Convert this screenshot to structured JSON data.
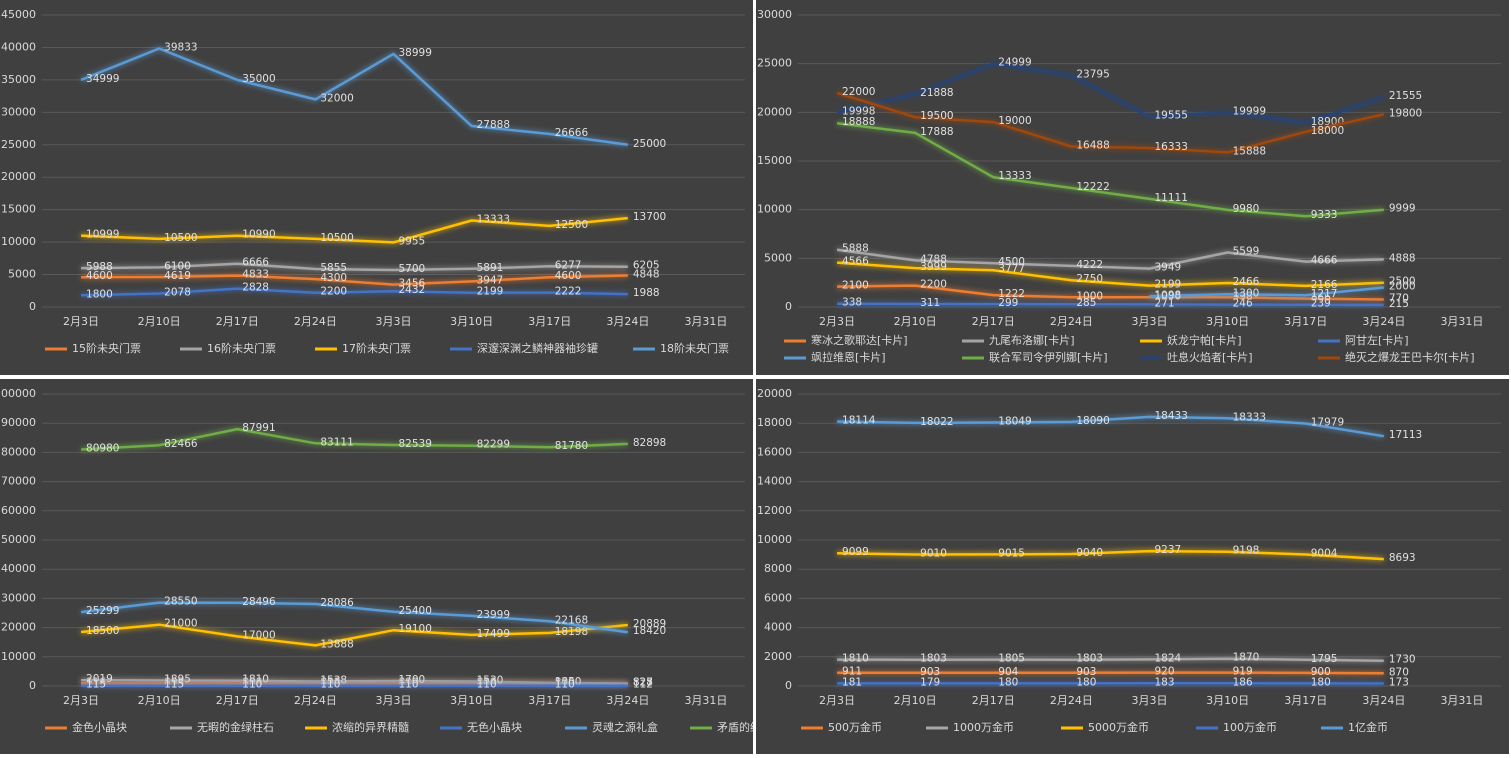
{
  "chart_data": [
    {
      "type": "line",
      "grid": true,
      "legend": "bottom",
      "categories": [
        "2月3日",
        "2月10日",
        "2月17日",
        "2月24日",
        "3月3日",
        "3月10日",
        "3月17日",
        "3月24日",
        "3月31日"
      ],
      "ylim": [
        0,
        45000
      ],
      "yticks": [
        0,
        5000,
        10000,
        15000,
        20000,
        25000,
        30000,
        35000,
        40000,
        45000
      ],
      "series": [
        {
          "name": "15阶未央门票",
          "color": "#ed7d31",
          "values": [
            4600,
            4619,
            4833,
            4300,
            3456,
            3947,
            4600,
            4848,
            null
          ]
        },
        {
          "name": "16阶未央门票",
          "color": "#a5a5a5",
          "values": [
            5988,
            6100,
            6666,
            5855,
            5700,
            5891,
            6277,
            6205,
            null
          ]
        },
        {
          "name": "17阶未央门票",
          "color": "#ffc000",
          "values": [
            10999,
            10500,
            10990,
            10500,
            9955,
            13333,
            12500,
            13700,
            null
          ]
        },
        {
          "name": "深邃深渊之鳞神器袖珍罐",
          "color": "#4472c4",
          "values": [
            1800,
            2078,
            2828,
            2200,
            2432,
            2199,
            2222,
            1988,
            null
          ]
        },
        {
          "name": "18阶未央门票",
          "color": "#5b9bd5",
          "values": [
            34999,
            39833,
            35000,
            32000,
            38999,
            27888,
            26666,
            25000,
            null
          ]
        }
      ]
    },
    {
      "type": "line",
      "grid": true,
      "legend": "bottom",
      "categories": [
        "2月3日",
        "2月10日",
        "2月17日",
        "2月24日",
        "3月3日",
        "3月10日",
        "3月17日",
        "3月24日",
        "3月31日"
      ],
      "ylim": [
        0,
        30000
      ],
      "yticks": [
        0,
        5000,
        10000,
        15000,
        20000,
        25000,
        30000
      ],
      "series": [
        {
          "name": "寒冰之歌耶达[卡片]",
          "color": "#ed7d31",
          "values": [
            2100,
            2200,
            1222,
            1000,
            1000,
            998,
            866,
            770,
            null
          ]
        },
        {
          "name": "九尾布洛娜[卡片]",
          "color": "#a5a5a5",
          "values": [
            5888,
            4788,
            4500,
            4222,
            3949,
            5599,
            4666,
            4888,
            null
          ]
        },
        {
          "name": "妖龙宁帕[卡片]",
          "color": "#ffc000",
          "values": [
            4566,
            3999,
            3777,
            2750,
            2199,
            2466,
            2166,
            2500,
            null
          ]
        },
        {
          "name": "阿甘左[卡片]",
          "color": "#4472c4",
          "values": [
            338,
            311,
            299,
            285,
            271,
            246,
            239,
            215,
            null
          ]
        },
        {
          "name": "飒拉维恩[卡片]",
          "color": "#5b9bd5",
          "values": [
            null,
            null,
            null,
            null,
            1098,
            1300,
            1217,
            2000,
            null
          ]
        },
        {
          "name": "联合军司令伊列娜[卡片]",
          "color": "#70ad47",
          "values": [
            18888,
            17888,
            13333,
            12222,
            11111,
            9980,
            9333,
            9999,
            null
          ]
        },
        {
          "name": "吐息火焰者[卡片]",
          "color": "#264478",
          "values": [
            19998,
            21888,
            24999,
            23795,
            19555,
            19999,
            18900,
            21555,
            null
          ]
        },
        {
          "name": "绝灭之爆龙王巴卡尔[卡片]",
          "color": "#9e480e",
          "values": [
            22000,
            19500,
            19000,
            16488,
            16333,
            15888,
            18000,
            19800,
            null
          ]
        }
      ]
    },
    {
      "type": "line",
      "grid": true,
      "legend": "bottom",
      "categories": [
        "2月3日",
        "2月10日",
        "2月17日",
        "2月24日",
        "3月3日",
        "3月10日",
        "3月17日",
        "3月24日",
        "3月31日"
      ],
      "ylim": [
        0,
        100000
      ],
      "yticks": [
        0,
        10000,
        20000,
        30000,
        40000,
        50000,
        60000,
        70000,
        80000,
        90000,
        100000
      ],
      "series": [
        {
          "name": "金色小晶块",
          "color": "#ed7d31",
          "values": [
            916,
            895,
            880,
            888,
            890,
            880,
            870,
            827,
            null
          ]
        },
        {
          "name": "无暇的金绿柱石",
          "color": "#a5a5a5",
          "values": [
            2019,
            1895,
            1810,
            1538,
            1700,
            1530,
            1050,
            828,
            null
          ]
        },
        {
          "name": "浓缩的异界精髓",
          "color": "#ffc000",
          "values": [
            18500,
            21000,
            17000,
            13888,
            19100,
            17499,
            18198,
            20889,
            null
          ]
        },
        {
          "name": "无色小晶块",
          "color": "#4472c4",
          "values": [
            115,
            115,
            110,
            110,
            110,
            110,
            110,
            112,
            null
          ]
        },
        {
          "name": "灵魂之源礼盒",
          "color": "#5b9bd5",
          "values": [
            25299,
            28550,
            28496,
            28086,
            25400,
            23999,
            22168,
            18420,
            null
          ]
        },
        {
          "name": "矛盾的结晶体",
          "color": "#70ad47",
          "values": [
            80980,
            82466,
            87991,
            83111,
            82539,
            82299,
            81780,
            82898,
            null
          ]
        }
      ]
    },
    {
      "type": "line",
      "grid": true,
      "legend": "bottom",
      "categories": [
        "2月3日",
        "2月10日",
        "2月17日",
        "2月24日",
        "3月3日",
        "3月10日",
        "3月17日",
        "3月24日",
        "3月31日"
      ],
      "ylim": [
        0,
        20000
      ],
      "yticks": [
        0,
        2000,
        4000,
        6000,
        8000,
        10000,
        12000,
        14000,
        16000,
        18000,
        20000
      ],
      "series": [
        {
          "name": "500万金币",
          "color": "#ed7d31",
          "values": [
            911,
            903,
            904,
            903,
            920,
            919,
            900,
            870,
            null
          ]
        },
        {
          "name": "1000万金币",
          "color": "#a5a5a5",
          "values": [
            1810,
            1803,
            1805,
            1803,
            1824,
            1870,
            1795,
            1730,
            null
          ]
        },
        {
          "name": "5000万金币",
          "color": "#ffc000",
          "values": [
            9099,
            9010,
            9015,
            9040,
            9237,
            9198,
            9004,
            8693,
            null
          ]
        },
        {
          "name": "100万金币",
          "color": "#4472c4",
          "values": [
            181,
            179,
            180,
            180,
            183,
            186,
            180,
            173,
            null
          ]
        },
        {
          "name": "1亿金币",
          "color": "#5b9bd5",
          "values": [
            18114,
            18022,
            18049,
            18090,
            18433,
            18333,
            17979,
            17113,
            null
          ]
        }
      ]
    }
  ]
}
